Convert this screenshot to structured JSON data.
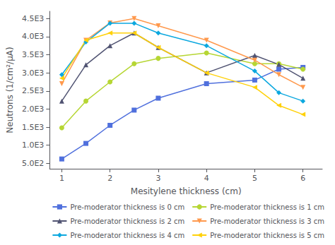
{
  "chart_data": {
    "type": "line",
    "xlabel": "Mesitylene thickness (cm)",
    "ylabel": "Neutrons (1/cm²/μA)",
    "x": [
      1,
      1.5,
      2,
      2.5,
      3,
      4,
      5,
      5.5,
      6
    ],
    "series": [
      {
        "name": "Pre-moderator thickness is 0 cm",
        "marker": "square",
        "values": [
          620,
          1050,
          1550,
          1970,
          2300,
          2700,
          2800,
          3100,
          3150
        ]
      },
      {
        "name": "Pre-moderator thickness is 1 cm",
        "marker": "circle",
        "values": [
          1480,
          2220,
          2750,
          3250,
          3400,
          3550,
          3250,
          3250,
          3100
        ]
      },
      {
        "name": "Pre-moderator thickness is 2 cm",
        "marker": "triangle-up",
        "values": [
          2220,
          3220,
          3750,
          4100,
          3700,
          3000,
          3480,
          3230,
          2850
        ]
      },
      {
        "name": "Pre-moderator thickness is 3 cm",
        "marker": "triangle-down",
        "values": [
          2700,
          3900,
          4380,
          4500,
          4300,
          3900,
          3350,
          2950,
          2600
        ]
      },
      {
        "name": "Pre-moderator thickness is 4 cm",
        "marker": "diamond",
        "values": [
          2950,
          3850,
          4370,
          4370,
          4100,
          3750,
          3050,
          2450,
          2220
        ]
      },
      {
        "name": "Pre-moderator thickness is 5 cm",
        "marker": "triangle-left",
        "values": [
          2850,
          3900,
          4100,
          4100,
          3700,
          3000,
          2600,
          2100,
          1850
        ]
      }
    ],
    "xlim": [
      0.75,
      6.4
    ],
    "xticks": [
      1,
      2,
      3,
      4,
      5,
      6
    ],
    "ylim": [
      350,
      4700
    ],
    "yticks": [
      {
        "value": 500,
        "label": "5.0E2"
      },
      {
        "value": 1000,
        "label": "1.0E3"
      },
      {
        "value": 1500,
        "label": "1.5E3"
      },
      {
        "value": 2000,
        "label": "2.0E3"
      },
      {
        "value": 2500,
        "label": "2.5E3"
      },
      {
        "value": 3000,
        "label": "3.0E3"
      },
      {
        "value": 3500,
        "label": "3.5E3"
      },
      {
        "value": 4000,
        "label": "4.0E3"
      },
      {
        "value": 4500,
        "label": "4.5E3"
      }
    ],
    "grid": false,
    "legend": "lower right"
  }
}
